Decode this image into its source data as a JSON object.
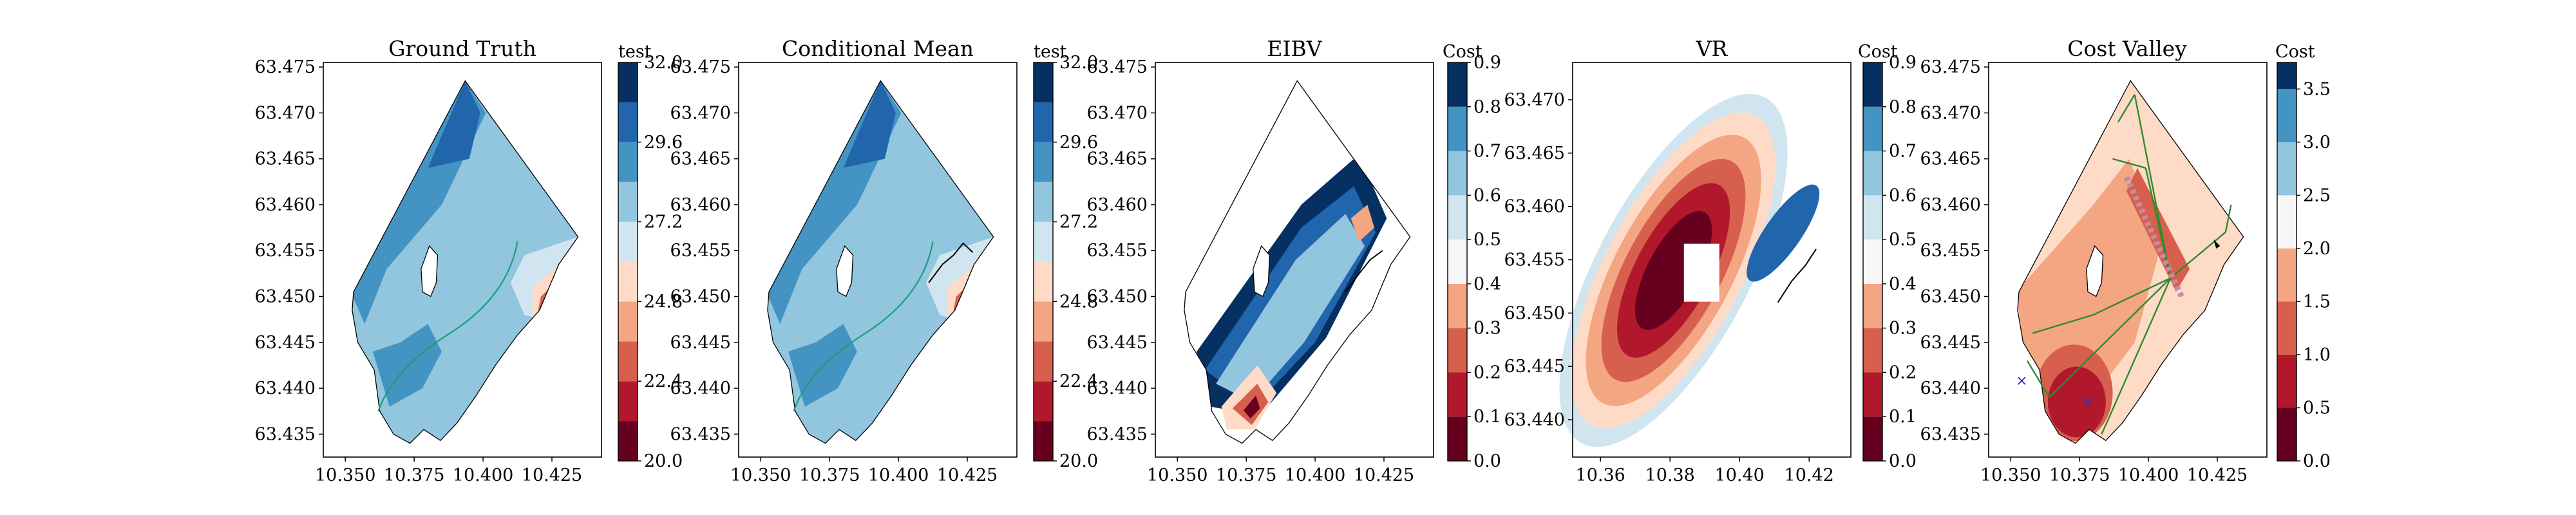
{
  "chart_data": [
    {
      "type": "contour",
      "title": "Ground Truth",
      "xlabel": "",
      "ylabel": "",
      "x_ticks": [
        "10.350",
        "10.375",
        "10.400",
        "10.425"
      ],
      "y_ticks": [
        "63.435",
        "63.440",
        "63.445",
        "63.450",
        "63.455",
        "63.460",
        "63.465",
        "63.470",
        "63.475"
      ],
      "xlim": [
        10.342,
        10.443
      ],
      "ylim": [
        63.4325,
        63.4755
      ],
      "colorbar": {
        "label": "test",
        "levels": [
          20.0,
          21.2,
          22.4,
          23.6,
          24.8,
          26.0,
          27.2,
          28.4,
          29.6,
          30.8,
          32.0
        ],
        "tick_labels": [
          "20.0",
          "22.4",
          "24.8",
          "27.2",
          "29.6",
          "32.0"
        ],
        "colormap": "RdBu"
      }
    },
    {
      "type": "contour",
      "title": "Conditional Mean",
      "xlabel": "",
      "ylabel": "",
      "x_ticks": [
        "10.350",
        "10.375",
        "10.400",
        "10.425"
      ],
      "y_ticks": [
        "63.435",
        "63.440",
        "63.445",
        "63.450",
        "63.455",
        "63.460",
        "63.465",
        "63.470",
        "63.475"
      ],
      "xlim": [
        10.342,
        10.443
      ],
      "ylim": [
        63.4325,
        63.4755
      ],
      "colorbar": {
        "label": "test",
        "levels": [
          20.0,
          21.2,
          22.4,
          23.6,
          24.8,
          26.0,
          27.2,
          28.4,
          29.6,
          30.8,
          32.0
        ],
        "tick_labels": [
          "20.0",
          "22.4",
          "24.8",
          "27.2",
          "29.6",
          "32.0"
        ],
        "colormap": "RdBu"
      }
    },
    {
      "type": "contour",
      "title": "EIBV",
      "xlabel": "",
      "ylabel": "",
      "x_ticks": [
        "10.350",
        "10.375",
        "10.400",
        "10.425"
      ],
      "y_ticks": [
        "63.435",
        "63.440",
        "63.445",
        "63.450",
        "63.455",
        "63.460",
        "63.465",
        "63.470",
        "63.475"
      ],
      "xlim": [
        10.342,
        10.443
      ],
      "ylim": [
        63.4325,
        63.4755
      ],
      "colorbar": {
        "label": "Cost",
        "levels": [
          0.0,
          0.1,
          0.2,
          0.3,
          0.4,
          0.5,
          0.6,
          0.7,
          0.8,
          0.9
        ],
        "tick_labels": [
          "0.0",
          "0.1",
          "0.2",
          "0.3",
          "0.4",
          "0.5",
          "0.6",
          "0.7",
          "0.8",
          "0.9"
        ],
        "colormap": "RdBu"
      }
    },
    {
      "type": "contour",
      "title": "VR",
      "xlabel": "",
      "ylabel": "",
      "x_ticks": [
        "10.36",
        "10.38",
        "10.40",
        "10.42"
      ],
      "y_ticks": [
        "63.440",
        "63.445",
        "63.450",
        "63.455",
        "63.460",
        "63.465",
        "63.470"
      ],
      "xlim": [
        10.352,
        10.432
      ],
      "ylim": [
        63.4365,
        63.4735
      ],
      "colorbar": {
        "label": "Cost",
        "levels": [
          0.0,
          0.1,
          0.2,
          0.3,
          0.4,
          0.5,
          0.6,
          0.7,
          0.8,
          0.9
        ],
        "tick_labels": [
          "0.0",
          "0.1",
          "0.2",
          "0.3",
          "0.4",
          "0.5",
          "0.6",
          "0.7",
          "0.8",
          "0.9"
        ],
        "colormap": "RdBu"
      }
    },
    {
      "type": "contour",
      "title": "Cost Valley",
      "xlabel": "",
      "ylabel": "",
      "x_ticks": [
        "10.350",
        "10.375",
        "10.400",
        "10.425"
      ],
      "y_ticks": [
        "63.435",
        "63.440",
        "63.445",
        "63.450",
        "63.455",
        "63.460",
        "63.465",
        "63.470",
        "63.475"
      ],
      "xlim": [
        10.342,
        10.443
      ],
      "ylim": [
        63.4325,
        63.4755
      ],
      "colorbar": {
        "label": "Cost",
        "levels": [
          0.0,
          0.5,
          1.0,
          1.5,
          2.0,
          2.5,
          3.0,
          3.5,
          3.75
        ],
        "tick_labels": [
          "0.0",
          "0.5",
          "1.0",
          "1.5",
          "2.0",
          "2.5",
          "3.0",
          "3.5"
        ],
        "colormap": "RdBu"
      }
    }
  ]
}
